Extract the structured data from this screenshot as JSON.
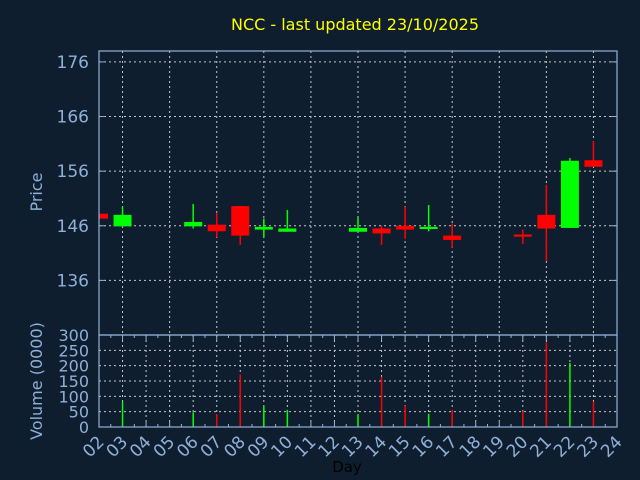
{
  "chart_data": [
    {
      "type": "candlestick",
      "title": "NCC - last updated 23/10/2025",
      "xlabel": "",
      "ylabel": "Price",
      "ylim": [
        126,
        178
      ],
      "xlim": [
        2,
        24
      ],
      "yticks": [
        136,
        146,
        156,
        166,
        176
      ],
      "grid": true,
      "colors": {
        "up": "#00ff00",
        "down": "#ff0000",
        "title": "#ffff00",
        "axis": "#8fb0d8",
        "grid": "#c8c8c8",
        "background": "#0f1e2f"
      },
      "candles": [
        {
          "day": 2,
          "open": 148.2,
          "high": 148.2,
          "low": 147.3,
          "close": 147.3
        },
        {
          "day": 3,
          "open": 145.9,
          "high": 149.5,
          "low": 145.9,
          "close": 148.0
        },
        {
          "day": 6,
          "open": 145.9,
          "high": 150.0,
          "low": 145.5,
          "close": 146.7
        },
        {
          "day": 7,
          "open": 146.2,
          "high": 148.4,
          "low": 143.9,
          "close": 145.0
        },
        {
          "day": 8,
          "open": 149.6,
          "high": 149.6,
          "low": 142.5,
          "close": 144.2
        },
        {
          "day": 9,
          "open": 145.3,
          "high": 147.3,
          "low": 143.8,
          "close": 145.8
        },
        {
          "day": 10,
          "open": 144.9,
          "high": 148.9,
          "low": 144.9,
          "close": 145.5
        },
        {
          "day": 13,
          "open": 144.9,
          "high": 147.5,
          "low": 144.9,
          "close": 145.6
        },
        {
          "day": 14,
          "open": 145.5,
          "high": 146.0,
          "low": 142.5,
          "close": 144.6
        },
        {
          "day": 15,
          "open": 146.0,
          "high": 149.5,
          "low": 143.6,
          "close": 145.3
        },
        {
          "day": 16,
          "open": 145.4,
          "high": 149.8,
          "low": 145.0,
          "close": 145.8
        },
        {
          "day": 17,
          "open": 144.2,
          "high": 146.4,
          "low": 142.0,
          "close": 143.4
        },
        {
          "day": 20,
          "open": 144.4,
          "high": 145.3,
          "low": 142.7,
          "close": 144.0
        },
        {
          "day": 21,
          "open": 148.0,
          "high": 153.5,
          "low": 139.5,
          "close": 145.5
        },
        {
          "day": 22,
          "open": 145.6,
          "high": 158.4,
          "low": 145.6,
          "close": 157.9
        },
        {
          "day": 23,
          "open": 158.0,
          "high": 161.5,
          "low": 156.8,
          "close": 156.8
        }
      ]
    },
    {
      "type": "bar",
      "xlabel": "Day",
      "ylabel": "Volume (0000)",
      "ylim": [
        0,
        300
      ],
      "yticks": [
        0,
        50,
        100,
        150,
        200,
        250,
        300
      ],
      "xticks": [
        "02",
        "03",
        "04",
        "05",
        "06",
        "07",
        "08",
        "09",
        "10",
        "11",
        "12",
        "13",
        "14",
        "15",
        "16",
        "17",
        "18",
        "19",
        "20",
        "21",
        "22",
        "23",
        "24"
      ],
      "grid": true,
      "bars": [
        {
          "day": 3,
          "value": 83,
          "direction": "up"
        },
        {
          "day": 6,
          "value": 48,
          "direction": "up"
        },
        {
          "day": 7,
          "value": 42,
          "direction": "down"
        },
        {
          "day": 8,
          "value": 171,
          "direction": "down"
        },
        {
          "day": 9,
          "value": 68,
          "direction": "up"
        },
        {
          "day": 10,
          "value": 56,
          "direction": "up"
        },
        {
          "day": 13,
          "value": 42,
          "direction": "up"
        },
        {
          "day": 14,
          "value": 164,
          "direction": "down"
        },
        {
          "day": 15,
          "value": 70,
          "direction": "down"
        },
        {
          "day": 16,
          "value": 43,
          "direction": "up"
        },
        {
          "day": 17,
          "value": 56,
          "direction": "down"
        },
        {
          "day": 20,
          "value": 51,
          "direction": "down"
        },
        {
          "day": 21,
          "value": 276,
          "direction": "down"
        },
        {
          "day": 22,
          "value": 209,
          "direction": "up"
        },
        {
          "day": 23,
          "value": 83,
          "direction": "down"
        }
      ]
    }
  ]
}
